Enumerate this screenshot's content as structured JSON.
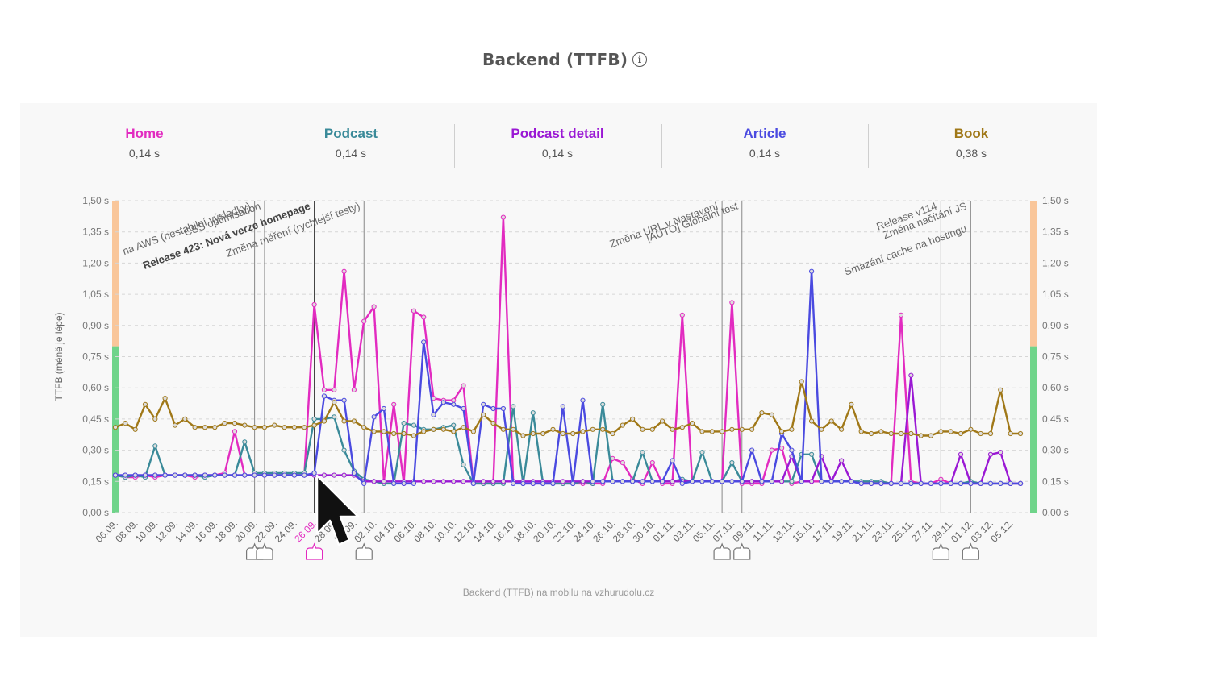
{
  "title": "Backend (TTFB)",
  "info_icon": "info-icon",
  "tabs": [
    {
      "label": "Home",
      "value": "0,14 s",
      "color": "#e22bc0"
    },
    {
      "label": "Podcast",
      "value": "0,14 s",
      "color": "#3a8a99"
    },
    {
      "label": "Podcast detail",
      "value": "0,14 s",
      "color": "#9a18d4"
    },
    {
      "label": "Article",
      "value": "0,14 s",
      "color": "#4a4ae0"
    },
    {
      "label": "Book",
      "value": "0,38 s",
      "color": "#a07818"
    }
  ],
  "caption": "Backend (TTFB) na mobilu na vzhurudolu.cz",
  "chart_data": {
    "type": "line",
    "ylabel": "TTFB (méně je lépe)",
    "ylim": [
      0,
      1.5
    ],
    "yticks": [
      "0,00 s",
      "0,15 s",
      "0,30 s",
      "0,45 s",
      "0,60 s",
      "0,75 s",
      "0,90 s",
      "1,05 s",
      "1,20 s",
      "1,35 s",
      "1,50 s"
    ],
    "xticks": [
      "06.09.",
      "08.09.",
      "10.09.",
      "12.09.",
      "14.09.",
      "16.09.",
      "18.09.",
      "20.09.",
      "22.09.",
      "24.09.",
      "26.09.",
      "28.09.",
      "30.09.",
      "02.10.",
      "04.10.",
      "06.10.",
      "08.10.",
      "10.10.",
      "12.10.",
      "14.10.",
      "16.10.",
      "18.10.",
      "20.10.",
      "22.10.",
      "24.10.",
      "26.10.",
      "28.10.",
      "30.10.",
      "01.11.",
      "03.11.",
      "05.11.",
      "07.11.",
      "09.11.",
      "11.11.",
      "13.11.",
      "15.11.",
      "17.11.",
      "19.11.",
      "21.11.",
      "23.11.",
      "25.11.",
      "27.11.",
      "29.11.",
      "01.12.",
      "03.12.",
      "05.12."
    ],
    "highlight_tick": "26.09.",
    "highlight_color": "#e22bc0",
    "zones": [
      {
        "from": 0,
        "to": 0.8,
        "color": "#6fd48a"
      },
      {
        "from": 0.8,
        "to": 1.5,
        "color": "#f9c69a"
      }
    ],
    "annotations": [
      {
        "day": 14,
        "text": "na AWS (nestabilní výsledky)",
        "bold": false
      },
      {
        "day": 15,
        "text": "CSS optimisation",
        "bold": false
      },
      {
        "day": 20,
        "text": "Release 423: Nová verze homepage",
        "bold": true
      },
      {
        "day": 25,
        "text": "Změna měření (rychlejší testy)",
        "bold": false
      },
      {
        "day": 61,
        "text": "Změna URL v Nastavení",
        "bold": false
      },
      {
        "day": 63,
        "text": "[AUTO] Globální test",
        "bold": false
      },
      {
        "day": 83,
        "text": "Release v114",
        "bold": false
      },
      {
        "day": 86,
        "text": "Změna načítání JS",
        "bold": false
      },
      {
        "day": 86,
        "text": "Smazání cache na hostingu",
        "bold": false
      }
    ],
    "series": [
      {
        "name": "Home",
        "color": "#e22bc0",
        "values": [
          0.18,
          0.17,
          0.17,
          0.18,
          0.17,
          0.18,
          0.18,
          0.18,
          0.17,
          0.18,
          0.18,
          0.19,
          0.39,
          0.18,
          0.18,
          0.18,
          0.18,
          0.18,
          0.18,
          0.18,
          1.0,
          0.59,
          0.59,
          1.16,
          0.59,
          0.92,
          0.99,
          0.15,
          0.52,
          0.14,
          0.97,
          0.94,
          0.55,
          0.54,
          0.54,
          0.61,
          0.14,
          0.14,
          0.14,
          1.42,
          0.15,
          0.14,
          0.14,
          0.14,
          0.14,
          0.14,
          0.14,
          0.14,
          0.14,
          0.14,
          0.26,
          0.24,
          0.16,
          0.14,
          0.24,
          0.14,
          0.14,
          0.95,
          0.15,
          0.15,
          0.15,
          0.15,
          1.01,
          0.14,
          0.14,
          0.14,
          0.3,
          0.31,
          0.14,
          0.15,
          0.15,
          0.15,
          0.15,
          0.15,
          0.15,
          0.14,
          0.14,
          0.14,
          0.14,
          0.95,
          0.15,
          0.14,
          0.14,
          0.16,
          0.14,
          0.14,
          0.14,
          0.14,
          0.14,
          0.14,
          0.14,
          0.14
        ]
      },
      {
        "name": "Podcast",
        "color": "#3a8a99",
        "values": [
          0.18,
          0.17,
          0.18,
          0.17,
          0.32,
          0.18,
          0.18,
          0.18,
          0.18,
          0.17,
          0.18,
          0.18,
          0.18,
          0.34,
          0.19,
          0.19,
          0.19,
          0.19,
          0.19,
          0.19,
          0.45,
          0.45,
          0.46,
          0.3,
          0.2,
          0.16,
          0.15,
          0.14,
          0.14,
          0.43,
          0.42,
          0.4,
          0.4,
          0.41,
          0.42,
          0.23,
          0.14,
          0.14,
          0.14,
          0.14,
          0.51,
          0.14,
          0.48,
          0.14,
          0.14,
          0.14,
          0.14,
          0.15,
          0.14,
          0.52,
          0.15,
          0.15,
          0.15,
          0.29,
          0.15,
          0.15,
          0.15,
          0.16,
          0.15,
          0.29,
          0.15,
          0.15,
          0.24,
          0.15,
          0.15,
          0.15,
          0.15,
          0.15,
          0.15,
          0.28,
          0.28,
          0.15,
          0.15,
          0.15,
          0.15,
          0.15,
          0.15,
          0.15,
          0.14,
          0.14,
          0.14,
          0.14,
          0.14,
          0.14,
          0.14,
          0.14,
          0.15,
          0.14,
          0.14,
          0.14,
          0.14,
          0.14
        ]
      },
      {
        "name": "Podcast detail",
        "color": "#9a18d4",
        "values": [
          0.18,
          0.18,
          0.18,
          0.18,
          0.18,
          0.18,
          0.18,
          0.18,
          0.18,
          0.18,
          0.18,
          0.18,
          0.18,
          0.18,
          0.18,
          0.18,
          0.18,
          0.18,
          0.18,
          0.18,
          0.18,
          0.18,
          0.18,
          0.18,
          0.18,
          0.15,
          0.15,
          0.15,
          0.15,
          0.15,
          0.15,
          0.15,
          0.15,
          0.15,
          0.15,
          0.15,
          0.15,
          0.15,
          0.15,
          0.15,
          0.15,
          0.15,
          0.15,
          0.15,
          0.15,
          0.15,
          0.15,
          0.15,
          0.15,
          0.15,
          0.15,
          0.15,
          0.15,
          0.15,
          0.15,
          0.15,
          0.15,
          0.15,
          0.15,
          0.15,
          0.15,
          0.15,
          0.15,
          0.15,
          0.15,
          0.15,
          0.15,
          0.15,
          0.27,
          0.15,
          0.15,
          0.27,
          0.15,
          0.25,
          0.15,
          0.14,
          0.14,
          0.14,
          0.14,
          0.14,
          0.66,
          0.14,
          0.14,
          0.14,
          0.14,
          0.28,
          0.14,
          0.14,
          0.28,
          0.29,
          0.14,
          0.14
        ]
      },
      {
        "name": "Article",
        "color": "#4a4ae0",
        "values": [
          0.18,
          0.18,
          0.18,
          0.18,
          0.18,
          0.18,
          0.18,
          0.18,
          0.18,
          0.18,
          0.18,
          0.18,
          0.18,
          0.18,
          0.18,
          0.18,
          0.18,
          0.18,
          0.18,
          0.18,
          0.19,
          0.56,
          0.54,
          0.54,
          0.19,
          0.14,
          0.46,
          0.5,
          0.14,
          0.14,
          0.14,
          0.82,
          0.47,
          0.53,
          0.52,
          0.5,
          0.14,
          0.52,
          0.5,
          0.5,
          0.14,
          0.14,
          0.14,
          0.14,
          0.14,
          0.51,
          0.14,
          0.54,
          0.15,
          0.15,
          0.15,
          0.15,
          0.15,
          0.15,
          0.15,
          0.15,
          0.25,
          0.14,
          0.15,
          0.15,
          0.15,
          0.15,
          0.15,
          0.15,
          0.3,
          0.15,
          0.15,
          0.38,
          0.3,
          0.15,
          1.16,
          0.15,
          0.15,
          0.15,
          0.15,
          0.14,
          0.14,
          0.14,
          0.14,
          0.14,
          0.14,
          0.14,
          0.14,
          0.14,
          0.14,
          0.14,
          0.14,
          0.14,
          0.14,
          0.14,
          0.14,
          0.14
        ]
      },
      {
        "name": "Book",
        "color": "#a07818",
        "values": [
          0.41,
          0.43,
          0.4,
          0.52,
          0.45,
          0.55,
          0.42,
          0.45,
          0.41,
          0.41,
          0.41,
          0.43,
          0.43,
          0.42,
          0.41,
          0.41,
          0.42,
          0.41,
          0.41,
          0.41,
          0.42,
          0.44,
          0.53,
          0.44,
          0.44,
          0.41,
          0.39,
          0.39,
          0.38,
          0.38,
          0.37,
          0.39,
          0.4,
          0.4,
          0.39,
          0.41,
          0.39,
          0.47,
          0.43,
          0.4,
          0.4,
          0.37,
          0.38,
          0.38,
          0.4,
          0.38,
          0.38,
          0.39,
          0.4,
          0.4,
          0.38,
          0.42,
          0.45,
          0.4,
          0.4,
          0.44,
          0.4,
          0.41,
          0.43,
          0.39,
          0.39,
          0.39,
          0.4,
          0.4,
          0.4,
          0.48,
          0.47,
          0.39,
          0.4,
          0.63,
          0.44,
          0.4,
          0.44,
          0.4,
          0.52,
          0.39,
          0.38,
          0.39,
          0.38,
          0.38,
          0.38,
          0.37,
          0.37,
          0.39,
          0.39,
          0.38,
          0.4,
          0.38,
          0.38,
          0.59,
          0.38,
          0.38
        ]
      }
    ]
  }
}
